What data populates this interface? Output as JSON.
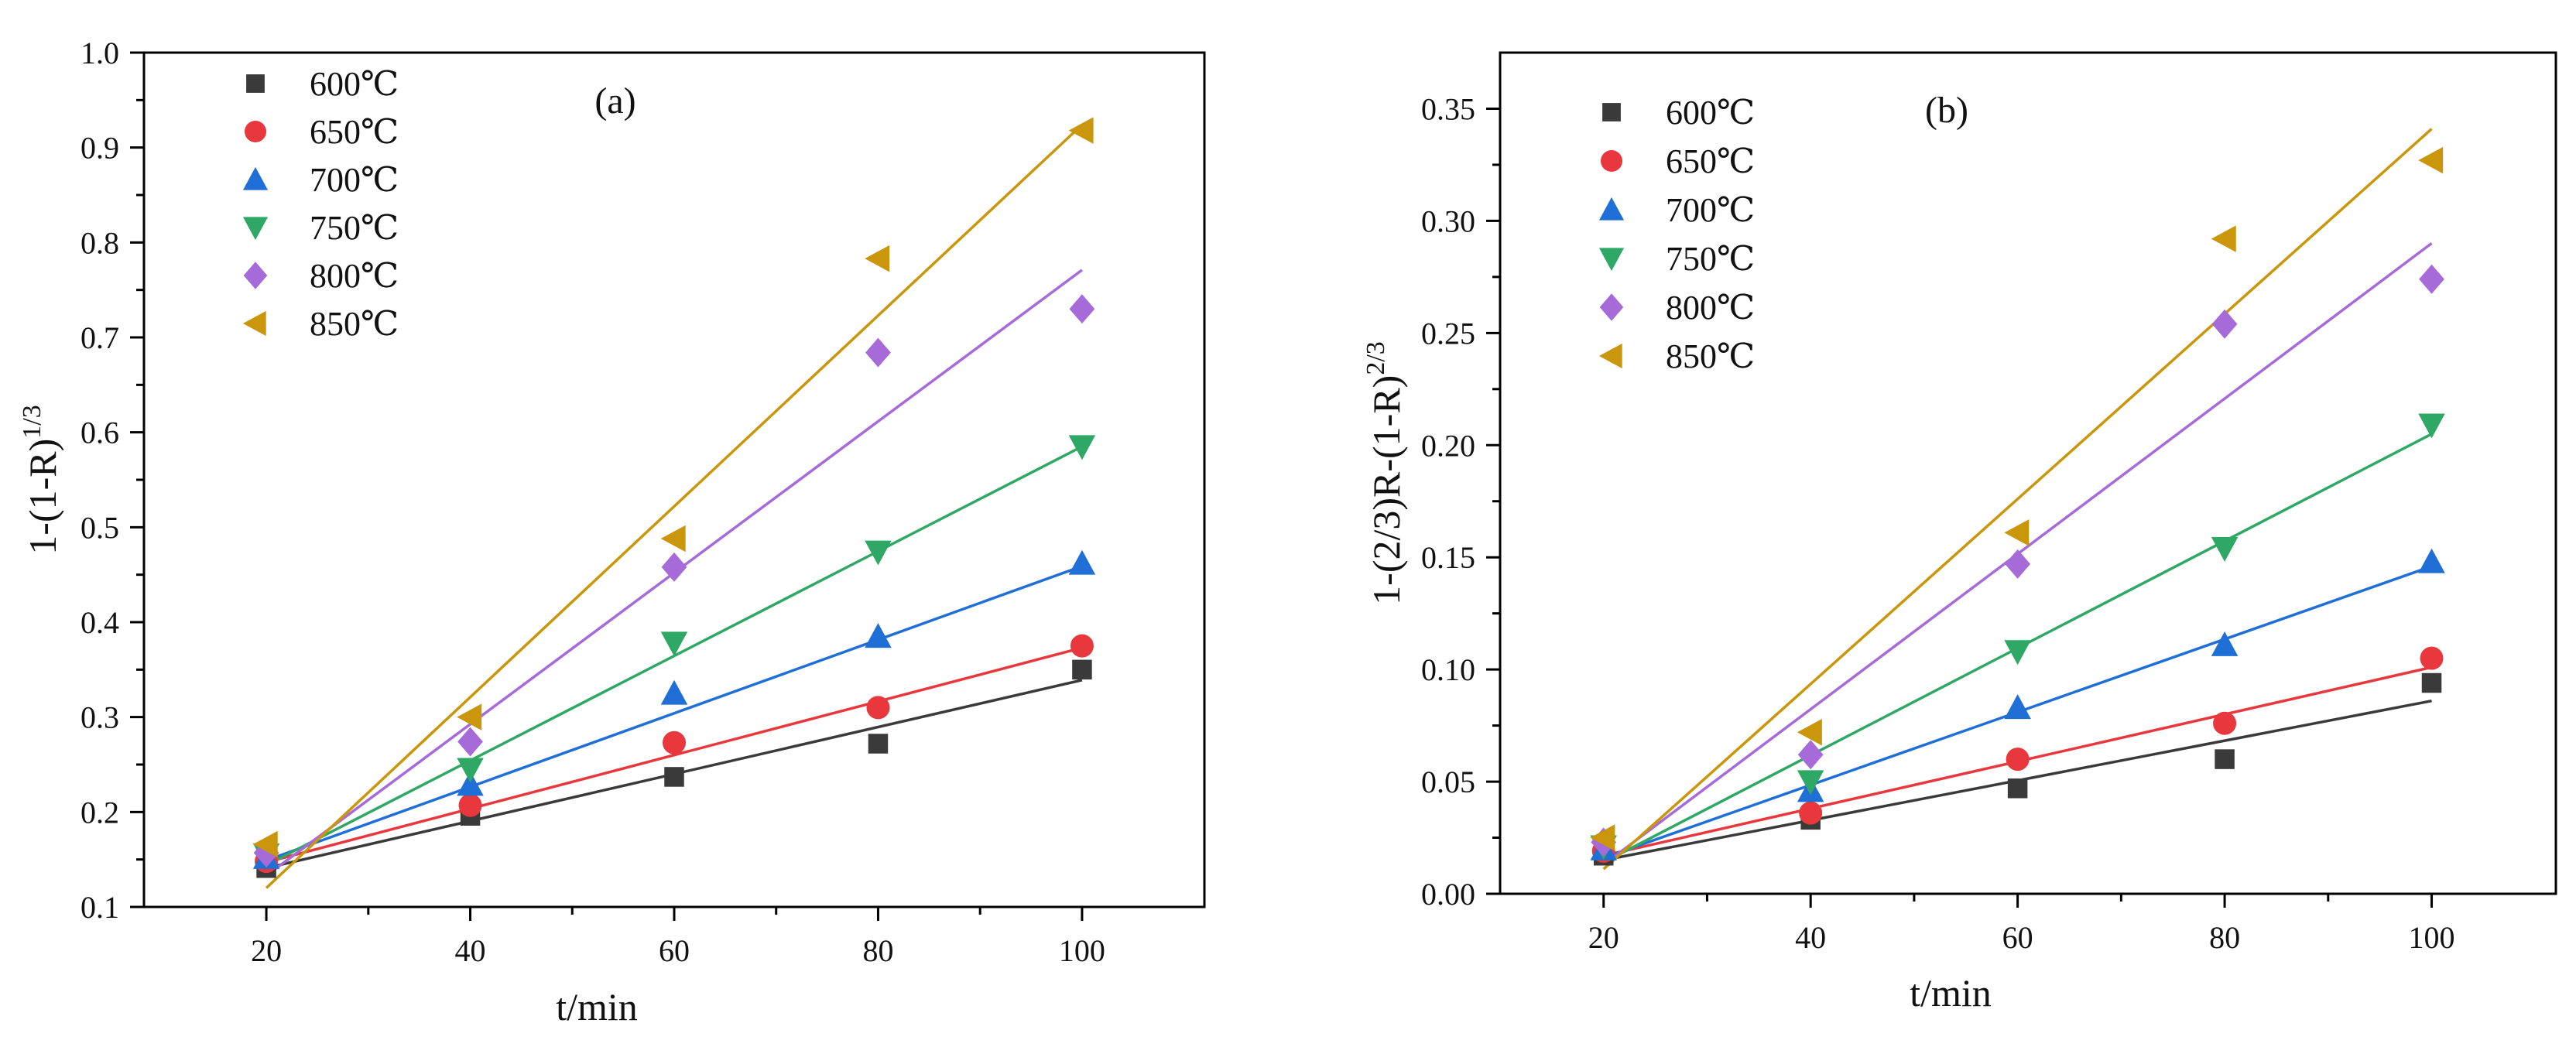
{
  "chart_data": [
    {
      "type": "scatter",
      "panel_label": "(a)",
      "title": "",
      "xlabel": "t/min",
      "ylabel_main": "1-(1-R)",
      "ylabel_sup": "1/3",
      "xlim": [
        8,
        112
      ],
      "ylim": [
        0.1,
        1.0
      ],
      "xticks": [
        "20",
        "40",
        "60",
        "80",
        "100"
      ],
      "yticks": [
        "0.1",
        "0.2",
        "0.3",
        "0.4",
        "0.5",
        "0.6",
        "0.7",
        "0.8",
        "0.9",
        "1.0"
      ],
      "x": [
        20,
        40,
        60,
        80,
        100
      ],
      "legend_position": "top-left",
      "series": [
        {
          "name": "600℃",
          "marker": "square",
          "color": "#3a3a3a",
          "values": [
            0.141,
            0.196,
            0.237,
            0.272,
            0.35
          ],
          "fit": [
            0.141,
            0.339
          ]
        },
        {
          "name": "650℃",
          "marker": "circle",
          "color": "#e8383d",
          "values": [
            0.148,
            0.207,
            0.273,
            0.31,
            0.375
          ],
          "fit": [
            0.147,
            0.373
          ]
        },
        {
          "name": "700℃",
          "marker": "triangle-up",
          "color": "#1f6fd6",
          "values": [
            0.152,
            0.229,
            0.325,
            0.385,
            0.462
          ],
          "fit": [
            0.149,
            0.459
          ]
        },
        {
          "name": "750℃",
          "marker": "triangle-down",
          "color": "#2fa866",
          "values": [
            0.155,
            0.245,
            0.378,
            0.474,
            0.585
          ],
          "fit": [
            0.144,
            0.585
          ]
        },
        {
          "name": "800℃",
          "marker": "diamond",
          "color": "#a66bd8",
          "values": [
            0.157,
            0.274,
            0.458,
            0.684,
            0.73
          ],
          "fit": [
            0.133,
            0.771
          ]
        },
        {
          "name": "850℃",
          "marker": "triangle-left",
          "color": "#c9960c",
          "values": [
            0.166,
            0.3,
            0.488,
            0.783,
            0.918
          ],
          "fit": [
            0.12,
            0.924
          ]
        }
      ]
    },
    {
      "type": "scatter",
      "panel_label": "(b)",
      "title": "",
      "xlabel": "t/min",
      "ylabel_main": "1-(2/3)R-(1-R)",
      "ylabel_sup": "2/3",
      "xlim": [
        10,
        112
      ],
      "ylim": [
        0.0,
        0.375
      ],
      "xticks": [
        "20",
        "40",
        "60",
        "80",
        "100"
      ],
      "yticks": [
        "0.00",
        "0.05",
        "0.10",
        "0.15",
        "0.20",
        "0.25",
        "0.30",
        "0.35"
      ],
      "x": [
        20,
        40,
        60,
        80,
        100
      ],
      "legend_position": "top-left",
      "series": [
        {
          "name": "600℃",
          "marker": "square",
          "color": "#3a3a3a",
          "values": [
            0.017,
            0.033,
            0.047,
            0.06,
            0.094
          ],
          "fit": [
            0.015,
            0.086
          ]
        },
        {
          "name": "650℃",
          "marker": "circle",
          "color": "#e8383d",
          "values": [
            0.019,
            0.036,
            0.06,
            0.076,
            0.105
          ],
          "fit": [
            0.017,
            0.101
          ]
        },
        {
          "name": "700℃",
          "marker": "triangle-up",
          "color": "#1f6fd6",
          "values": [
            0.02,
            0.046,
            0.083,
            0.111,
            0.148
          ],
          "fit": [
            0.016,
            0.146
          ]
        },
        {
          "name": "750℃",
          "marker": "triangle-down",
          "color": "#2fa866",
          "values": [
            0.021,
            0.05,
            0.108,
            0.154,
            0.209
          ],
          "fit": [
            0.014,
            0.205
          ]
        },
        {
          "name": "800℃",
          "marker": "diamond",
          "color": "#a66bd8",
          "values": [
            0.023,
            0.062,
            0.147,
            0.254,
            0.274
          ],
          "fit": [
            0.013,
            0.29
          ]
        },
        {
          "name": "850℃",
          "marker": "triangle-left",
          "color": "#c9960c",
          "values": [
            0.025,
            0.072,
            0.161,
            0.292,
            0.327
          ],
          "fit": [
            0.011,
            0.341
          ]
        }
      ]
    }
  ]
}
